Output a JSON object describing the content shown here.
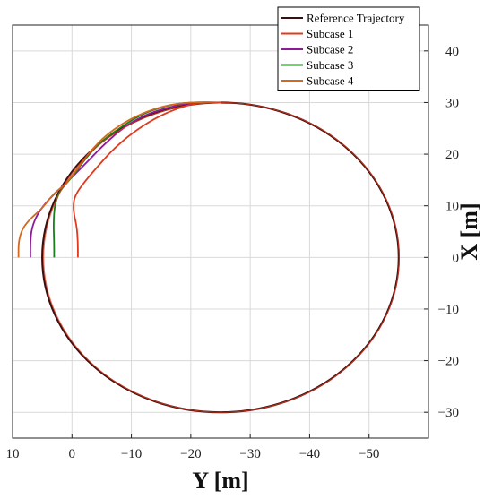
{
  "chart_data": {
    "type": "line",
    "title": "",
    "xlabel": "Y [m]",
    "ylabel": "X [m]",
    "xlim": [
      10,
      -60
    ],
    "ylim": [
      -35,
      45
    ],
    "x_reversed": true,
    "y_axis_side": "right",
    "grid": true,
    "xticks": [
      10,
      0,
      -10,
      -20,
      -30,
      -40,
      -50
    ],
    "yticks": [
      -30,
      -20,
      -10,
      0,
      10,
      20,
      30,
      40
    ],
    "xtick_labels": [
      "10",
      "0",
      "−10",
      "−20",
      "−30",
      "−40",
      "−50"
    ],
    "ytick_labels": [
      "−30",
      "−20",
      "−10",
      "0",
      "10",
      "20",
      "30",
      "40"
    ],
    "legend_position": "top-right",
    "reference": {
      "name": "Reference Trajectory",
      "color": "#3a0f0f",
      "shape": "circle",
      "center_y": -25,
      "center_x": 0,
      "radius": 30
    },
    "series": [
      {
        "name": "Subcase 1",
        "color": "#e03a1e",
        "points": [
          [
            -1.0,
            0
          ],
          [
            -1.0,
            3
          ],
          [
            -0.8,
            6
          ],
          [
            -0.4,
            8
          ],
          [
            -0.2,
            10
          ],
          [
            -0.5,
            12
          ],
          [
            -2,
            14.5
          ],
          [
            -5,
            18.5
          ],
          [
            -7,
            21
          ],
          [
            -10,
            24
          ],
          [
            -14,
            27
          ],
          [
            -18,
            29
          ],
          [
            -21,
            29.9
          ],
          [
            -25,
            30
          ]
        ]
      },
      {
        "name": "Subcase 2",
        "color": "#8e1a9a",
        "points": [
          [
            7.0,
            0
          ],
          [
            7.0,
            3
          ],
          [
            6.8,
            5.5
          ],
          [
            6.0,
            8
          ],
          [
            4.5,
            10.5
          ],
          [
            2.5,
            12.8
          ],
          [
            0,
            15.5
          ],
          [
            -3,
            19
          ],
          [
            -5.5,
            22
          ],
          [
            -9,
            25.5
          ],
          [
            -13,
            28
          ],
          [
            -18,
            29.6
          ],
          [
            -21,
            30
          ],
          [
            -25,
            30
          ]
        ]
      },
      {
        "name": "Subcase 3",
        "color": "#1a7f1a",
        "points": [
          [
            3.0,
            0
          ],
          [
            3.0,
            3
          ],
          [
            3.1,
            6
          ],
          [
            3.0,
            9
          ],
          [
            2.7,
            11
          ],
          [
            2,
            13
          ],
          [
            0,
            15.5
          ],
          [
            -2.5,
            19.5
          ],
          [
            -5,
            22.5
          ],
          [
            -8.5,
            25.5
          ],
          [
            -12.5,
            28.2
          ],
          [
            -17,
            29.7
          ],
          [
            -21,
            30.1
          ],
          [
            -25,
            30
          ]
        ]
      },
      {
        "name": "Subcase 4",
        "color": "#d2691e",
        "points": [
          [
            9.0,
            0
          ],
          [
            9.0,
            3
          ],
          [
            8.4,
            5.5
          ],
          [
            7,
            7.5
          ],
          [
            5,
            9.5
          ],
          [
            3,
            12.5
          ],
          [
            1.2,
            14
          ],
          [
            -0.5,
            16.5
          ],
          [
            -3,
            20.5
          ],
          [
            -6,
            24
          ],
          [
            -10,
            27
          ],
          [
            -15,
            29.3
          ],
          [
            -20,
            30.1
          ],
          [
            -25,
            30
          ]
        ]
      }
    ]
  }
}
